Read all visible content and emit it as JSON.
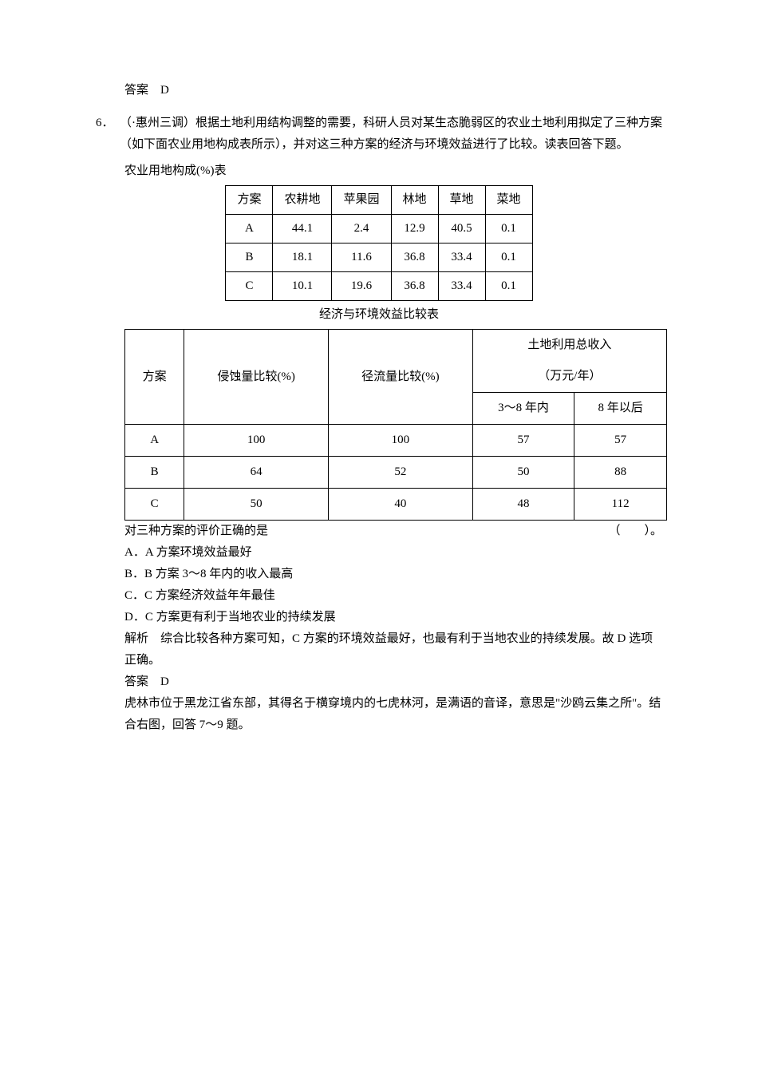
{
  "answer5": {
    "label": "答案",
    "value": "D"
  },
  "q6": {
    "num": "6．",
    "intro": "（·惠州三调）根据土地利用结构调整的需要，科研人员对某生态脆弱区的农业土地利用拟定了三种方案（如下面农业用地构成表所示），并对这三种方案的经济与环境效益进行了比较。读表回答下题。",
    "table1_caption": "农业用地构成(%)表",
    "table1": {
      "headers": [
        "方案",
        "农耕地",
        "苹果园",
        "林地",
        "草地",
        "菜地"
      ],
      "rows": [
        [
          "A",
          "44.1",
          "2.4",
          "12.9",
          "40.5",
          "0.1"
        ],
        [
          "B",
          "18.1",
          "11.6",
          "36.8",
          "33.4",
          "0.1"
        ],
        [
          "C",
          "10.1",
          "19.6",
          "36.8",
          "33.4",
          "0.1"
        ]
      ]
    },
    "table2_caption": "经济与环境效益比较表",
    "table2": {
      "h_col1": "方案",
      "h_col2": "侵蚀量比较(%)",
      "h_col3": "径流量比较(%)",
      "h_col4": "土地利用总收入",
      "h_col4_sub": "（万元/年）",
      "h_col4_a": "3～8 年内",
      "h_col4_b": "8 年以后",
      "rows": [
        [
          "A",
          "100",
          "100",
          "57",
          "57"
        ],
        [
          "B",
          "64",
          "52",
          "50",
          "88"
        ],
        [
          "C",
          "50",
          "40",
          "48",
          "112"
        ]
      ]
    },
    "stem": "对三种方案的评价正确的是",
    "paren": "（　　）。",
    "opts": {
      "a": "A．A 方案环境效益最好",
      "b": "B．B 方案 3～8 年内的收入最高",
      "c": "C．C 方案经济效益年年最佳",
      "d": "D．C 方案更有利于当地农业的持续发展"
    },
    "exp_label": "解析",
    "exp_text": "综合比较各种方案可知，C 方案的环境效益最好，也最有利于当地农业的持续发展。故 D 选项正确。",
    "ans_label": "答案",
    "ans_value": "D"
  },
  "reading": {
    "text": "虎林市位于黑龙江省东部，其得名于横穿境内的七虎林河，是满语的音译，意思是\"沙鸥云集之所\"。结合右图，回答 7～9 题。"
  },
  "style": {
    "font_family": "SimSun",
    "body_fontsize": 15,
    "text_color": "#000000",
    "background": "#ffffff",
    "table_border_color": "#000000"
  }
}
